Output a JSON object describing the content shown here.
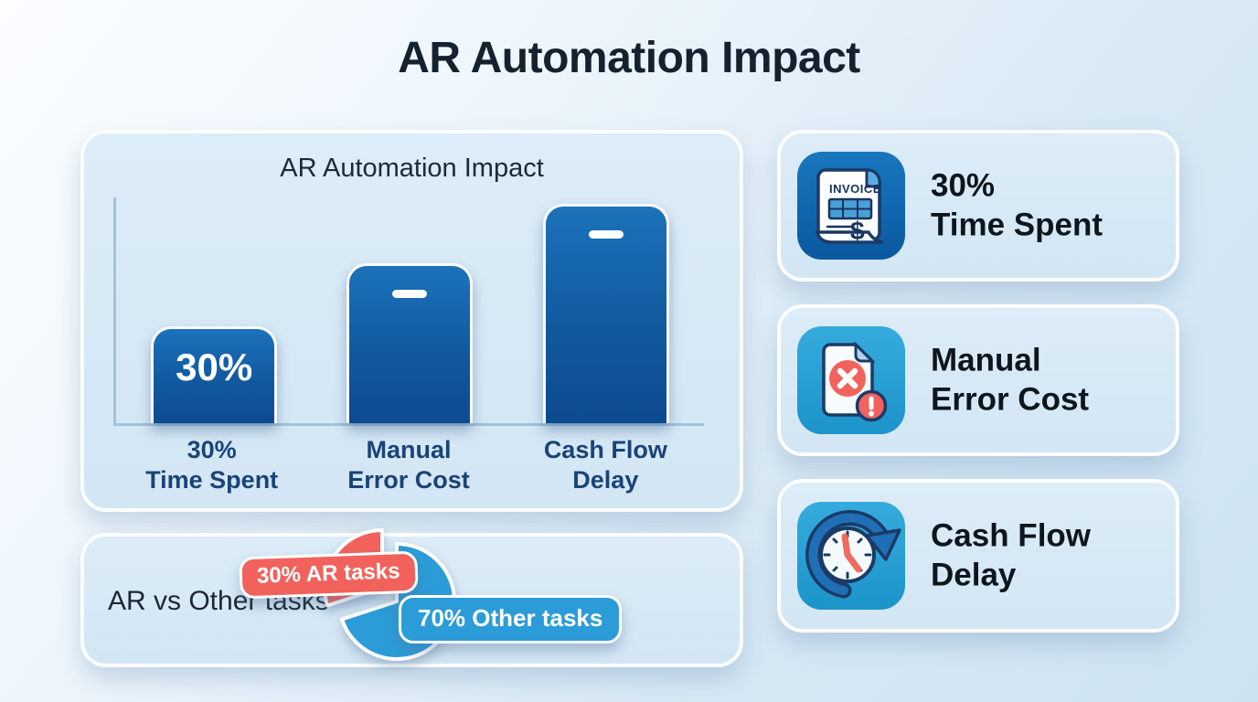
{
  "page": {
    "title": "AR Automation Impact"
  },
  "colors": {
    "bar_blue": "#11599f",
    "pie_blue": "#2b9cd8",
    "pie_red": "#f2625d",
    "label_navy": "#1a4378",
    "icon_bg_dark_blue": "#0f66ad",
    "icon_bg_cyan": "#28a0d6"
  },
  "chart_data": [
    {
      "type": "bar",
      "title": "AR Automation Impact",
      "categories": [
        "30% Time Spent",
        "Manual Error Cost",
        "Cash Flow Delay"
      ],
      "category_lines": [
        [
          "30%",
          "Time Spent"
        ],
        [
          "Manual",
          "Error Cost"
        ],
        [
          "Cash Flow",
          "Delay"
        ]
      ],
      "value_labels": [
        "30%",
        "",
        ""
      ],
      "heights_pct": [
        43,
        71,
        97
      ],
      "xlabel": "",
      "ylabel": "",
      "axis_ticks": "none",
      "grid": "off",
      "legend": "none",
      "bar_color": "#11599f"
    },
    {
      "type": "pie",
      "title": "AR vs Other tasks",
      "labels": [
        "30% AR tasks",
        "70% Other tasks"
      ],
      "values": [
        30,
        70
      ],
      "colors": [
        "#f2625d",
        "#2b9cd8"
      ],
      "exploded": [
        true,
        false
      ],
      "legend_position": "overlay-badges"
    }
  ],
  "stats": [
    {
      "icon": "invoice-icon",
      "lines": [
        "30%",
        "Time Spent"
      ]
    },
    {
      "icon": "error-document-icon",
      "lines": [
        "Manual",
        "Error Cost"
      ]
    },
    {
      "icon": "cash-flow-clock-icon",
      "lines": [
        "Cash Flow",
        "Delay"
      ]
    }
  ],
  "icon_texts": {
    "invoice_label": "INVOICE",
    "dollar": "$"
  }
}
